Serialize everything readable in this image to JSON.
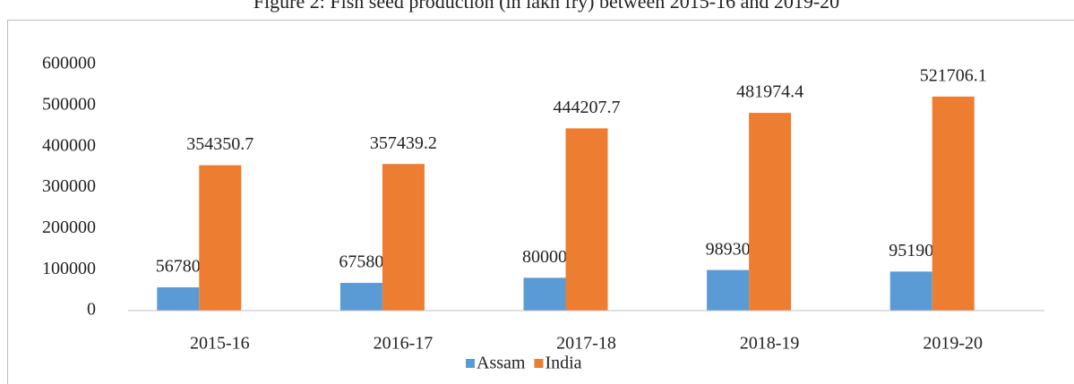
{
  "chart_data": {
    "type": "bar",
    "title": "Figure 2: Fish seed production (in lakh fry) between 2015-16 and 2019-20",
    "categories": [
      "2015-16",
      "2016-17",
      "2017-18",
      "2018-19",
      "2019-20"
    ],
    "series": [
      {
        "name": "Assam",
        "color": "#5b9bd5",
        "values": [
          56780,
          67580,
          80000,
          98930,
          95190
        ]
      },
      {
        "name": "India",
        "color": "#ed7d31",
        "values": [
          354350.7,
          357439.2,
          444207.7,
          481974.4,
          521706.1
        ]
      }
    ],
    "ylim": [
      0,
      600000
    ],
    "yticks": [
      0,
      100000,
      200000,
      300000,
      400000,
      500000,
      600000
    ],
    "grid": false,
    "legend": "bottom"
  }
}
